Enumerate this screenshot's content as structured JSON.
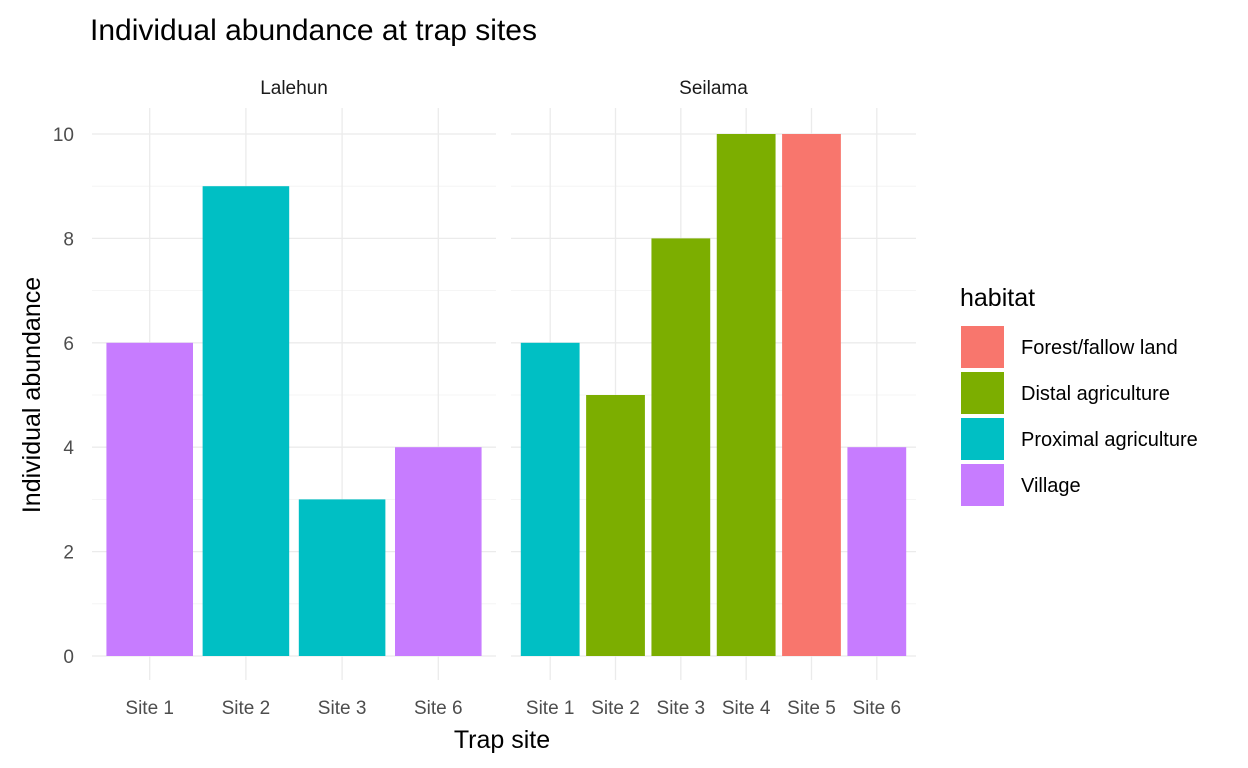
{
  "chart_data": {
    "type": "bar",
    "title": "Individual abundance at trap sites",
    "xlabel": "Trap site",
    "ylabel": "Individual abundance",
    "ylim": [
      0,
      10
    ],
    "y_ticks": [
      "0",
      "2",
      "4",
      "6",
      "8",
      "10"
    ],
    "facets": [
      {
        "name": "Lalehun",
        "categories": [
          "Site 1",
          "Site 2",
          "Site 3",
          "Site 6"
        ],
        "values": [
          6,
          9,
          3,
          4
        ],
        "habitats": [
          "Village",
          "Proximal agriculture",
          "Proximal agriculture",
          "Village"
        ]
      },
      {
        "name": "Seilama",
        "categories": [
          "Site 1",
          "Site 2",
          "Site 3",
          "Site 4",
          "Site 5",
          "Site 6"
        ],
        "values": [
          6,
          5,
          8,
          10,
          10,
          4
        ],
        "habitats": [
          "Proximal agriculture",
          "Distal agriculture",
          "Distal agriculture",
          "Distal agriculture",
          "Forest/fallow land",
          "Village"
        ]
      }
    ],
    "legend": {
      "title": "habitat",
      "position": "right",
      "entries": [
        {
          "label": "Forest/fallow land",
          "color": "#F8766D"
        },
        {
          "label": "Distal agriculture",
          "color": "#7CAE00"
        },
        {
          "label": "Proximal agriculture",
          "color": "#00BFC4"
        },
        {
          "label": "Village",
          "color": "#C77CFF"
        }
      ]
    },
    "grid": true
  }
}
